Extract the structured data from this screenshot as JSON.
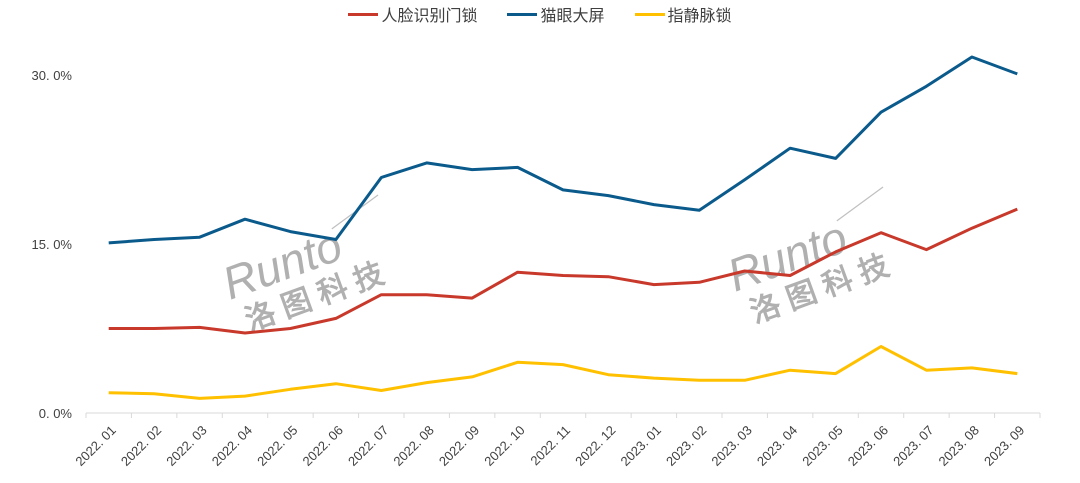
{
  "chart_data": {
    "type": "line",
    "title": "",
    "xlabel": "",
    "ylabel": "",
    "categories": [
      "2022.01",
      "2022.02",
      "2022.03",
      "2022.04",
      "2022.05",
      "2022.06",
      "2022.07",
      "2022.08",
      "2022.09",
      "2022.10",
      "2022.11",
      "2022.12",
      "2023.01",
      "2023.02",
      "2023.03",
      "2023.04",
      "2023.05",
      "2023.06",
      "2023.07",
      "2023.08",
      "2023.09"
    ],
    "category_labels": [
      "2022. 01",
      "2022. 02",
      "2022. 03",
      "2022. 04",
      "2022. 05",
      "2022. 06",
      "2022. 07",
      "2022. 08",
      "2022. 09",
      "2022. 10",
      "2022. 11",
      "2022. 12",
      "2023. 01",
      "2023. 02",
      "2023. 03",
      "2023. 04",
      "2023. 05",
      "2023. 06",
      "2023. 07",
      "2023. 08",
      "2023. 09"
    ],
    "series": [
      {
        "name": "人脸识别门锁",
        "color": "#C8392B",
        "values": [
          7.5,
          7.5,
          7.6,
          7.1,
          7.5,
          8.4,
          10.5,
          10.5,
          10.2,
          12.5,
          12.2,
          12.1,
          11.4,
          11.6,
          12.6,
          12.2,
          14.3,
          16.0,
          14.5,
          16.4,
          18.1
        ]
      },
      {
        "name": "猫眼大屏",
        "color": "#0B5A8C",
        "values": [
          15.1,
          15.4,
          15.6,
          17.2,
          16.1,
          15.4,
          20.9,
          22.2,
          21.6,
          21.8,
          19.8,
          19.3,
          18.5,
          18.0,
          20.7,
          23.5,
          22.6,
          26.7,
          29.0,
          31.6,
          30.1
        ]
      },
      {
        "name": "指静脉锁",
        "color": "#FFC000",
        "values": [
          1.8,
          1.7,
          1.3,
          1.5,
          2.1,
          2.6,
          2.0,
          2.7,
          3.2,
          4.5,
          4.3,
          3.4,
          3.1,
          2.9,
          2.9,
          3.8,
          3.5,
          5.9,
          3.8,
          4.0,
          3.5
        ]
      }
    ],
    "yticks": [
      0,
      15,
      30
    ],
    "ytick_labels": [
      "0. 0%",
      "15. 0%",
      "30. 0%"
    ],
    "ylim": [
      0,
      33
    ],
    "grid": false,
    "legend_position": "top",
    "unit": "%"
  },
  "watermark": {
    "brand": "Runto",
    "chinese": "洛 图 科 技"
  }
}
